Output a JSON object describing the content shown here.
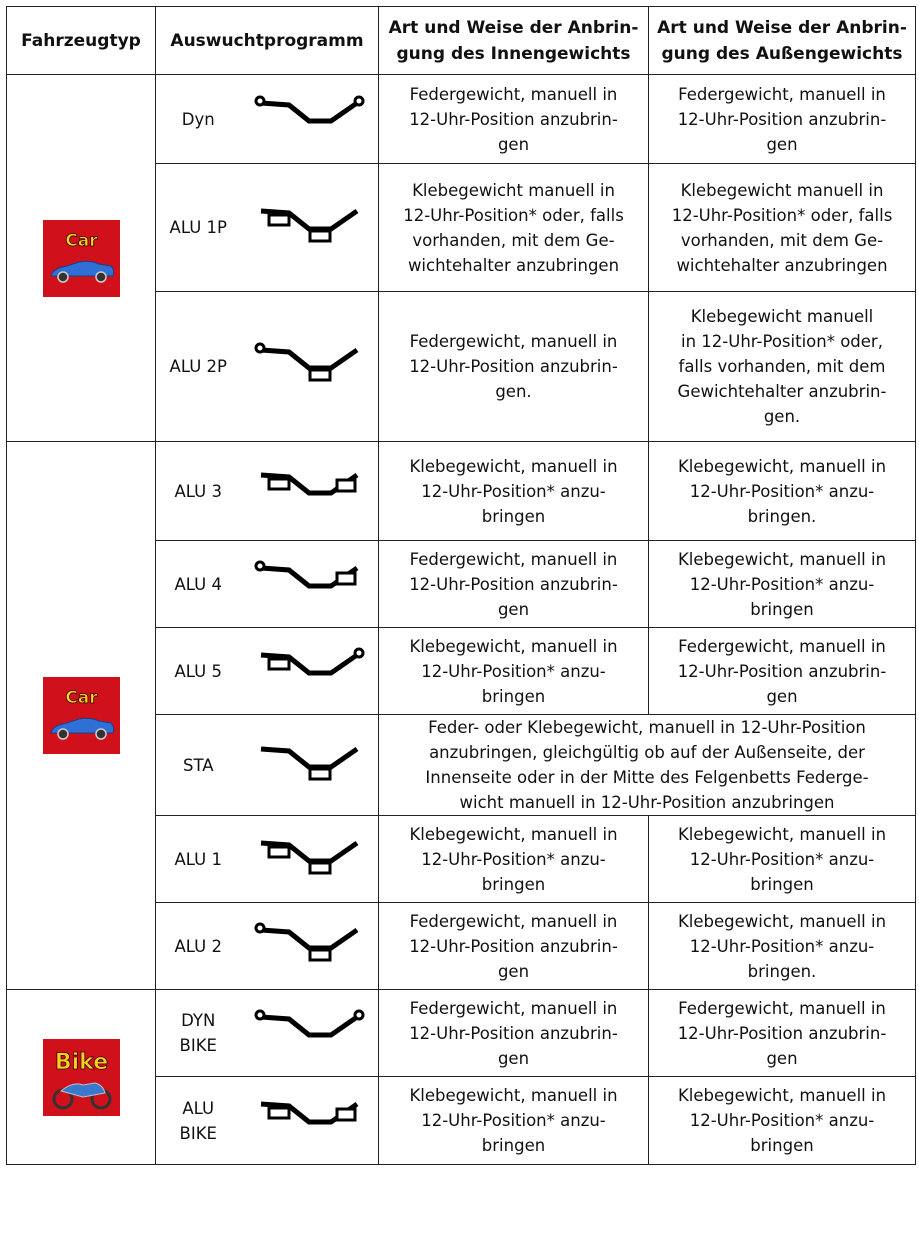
{
  "header": {
    "vehicle_type": "Fahrzeugtyp",
    "program": "Auswuchtprogramm",
    "inner": [
      "Art und Weise der Anbrin-",
      "gung des Innengewichts"
    ],
    "outer": [
      "Art und Weise der Anbrin-",
      "gung des Außengewichts"
    ]
  },
  "groups": [
    {
      "badge": "Car",
      "rows": [
        {
          "program": [
            "Dyn"
          ],
          "inner": [
            "Federgewicht, manuell in",
            "12-Uhr-Position anzubrin-",
            "gen"
          ],
          "outer": [
            "Federgewicht, manuell in",
            "12-Uhr-Position anzubrin-",
            "gen"
          ]
        },
        {
          "program": [
            "ALU 1P"
          ],
          "inner": [
            "Klebegewicht manuell in",
            "12-Uhr-Position* oder, falls",
            "vorhanden, mit dem Ge-",
            "wichtehalter anzubringen"
          ],
          "outer": [
            "Klebegewicht manuell in",
            "12-Uhr-Position* oder, falls",
            "vorhanden, mit dem Ge-",
            "wichtehalter anzubringen"
          ]
        },
        {
          "program": [
            "ALU 2P"
          ],
          "inner": [
            "Federgewicht, manuell in",
            "12-Uhr-Position anzubrin-",
            "gen."
          ],
          "outer": [
            "Klebegewicht manuell",
            "in 12-Uhr-Position* oder,",
            "falls vorhanden, mit dem",
            "Gewichtehalter anzubrin-",
            "gen."
          ]
        }
      ]
    },
    {
      "badge": "Car",
      "rows": [
        {
          "program": [
            "ALU 3"
          ],
          "inner": [
            "Klebegewicht, manuell in",
            "12-Uhr-Position* anzu-",
            "bringen"
          ],
          "outer": [
            "Klebegewicht, manuell in",
            "12-Uhr-Position* anzu-",
            "bringen."
          ]
        },
        {
          "program": [
            "ALU 4"
          ],
          "inner": [
            "Federgewicht, manuell in",
            "12-Uhr-Position anzubrin-",
            "gen"
          ],
          "outer": [
            "Klebegewicht, manuell in",
            "12-Uhr-Position* anzu-",
            "bringen"
          ]
        },
        {
          "program": [
            "ALU 5"
          ],
          "inner": [
            "Klebegewicht, manuell in",
            "12-Uhr-Position* anzu-",
            "bringen"
          ],
          "outer": [
            "Federgewicht, manuell in",
            "12-Uhr-Position anzubrin-",
            "gen"
          ]
        },
        {
          "program": [
            "STA"
          ],
          "both": [
            "Feder- oder Klebegewicht, manuell in 12-Uhr-Position",
            "anzubringen, gleichgültig ob auf der Außenseite, der",
            "Innenseite oder in der Mitte des Felgenbetts Federge-",
            "wicht manuell in 12-Uhr-Position anzubringen"
          ]
        },
        {
          "program": [
            "ALU 1"
          ],
          "inner": [
            "Klebegewicht, manuell in",
            "12-Uhr-Position* anzu-",
            "bringen"
          ],
          "outer": [
            "Klebegewicht, manuell in",
            "12-Uhr-Position* anzu-",
            "bringen"
          ]
        },
        {
          "program": [
            "ALU 2"
          ],
          "inner": [
            "Federgewicht, manuell in",
            "12-Uhr-Position anzubrin-",
            "gen"
          ],
          "outer": [
            "Klebegewicht, manuell in",
            "12-Uhr-Position* anzu-",
            "bringen."
          ]
        }
      ]
    },
    {
      "badge": "Bike",
      "rows": [
        {
          "program": [
            "DYN",
            "BIKE"
          ],
          "inner": [
            "Federgewicht, manuell in",
            "12-Uhr-Position anzubrin-",
            "gen"
          ],
          "outer": [
            "Federgewicht, manuell in",
            "12-Uhr-Position anzubrin-",
            "gen"
          ]
        },
        {
          "program": [
            "ALU",
            "BIKE"
          ],
          "inner": [
            "Klebegewicht, manuell in",
            "12-Uhr-Position* anzu-",
            "bringen"
          ],
          "outer": [
            "Klebegewicht, manuell in",
            "12-Uhr-Position* anzu-",
            "bringen"
          ]
        }
      ]
    }
  ]
}
